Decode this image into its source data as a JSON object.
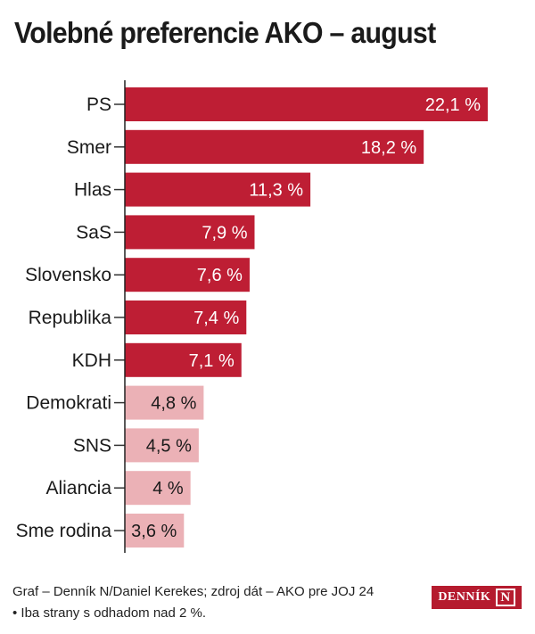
{
  "title": "Volebné preferencie AKO – august",
  "chart_data": {
    "type": "bar",
    "orientation": "horizontal",
    "title": "Volebné preferencie AKO – august",
    "categories": [
      "PS",
      "Smer",
      "Hlas",
      "SaS",
      "Slovensko",
      "Republika",
      "KDH",
      "Demokrati",
      "SNS",
      "Aliancia",
      "Sme rodina"
    ],
    "values": [
      22.1,
      18.2,
      11.3,
      7.9,
      7.6,
      7.4,
      7.1,
      4.8,
      4.5,
      4,
      3.6
    ],
    "value_labels": [
      "22,1 %",
      "18,2 %",
      "11,3 %",
      "7,9 %",
      "7,6 %",
      "7,4 %",
      "7,1 %",
      "4,8 %",
      "4,5 %",
      "4 %",
      "3,6 %"
    ],
    "unit": "%",
    "xlim": [
      0,
      22.1
    ],
    "grid": false,
    "colors": {
      "above_threshold": "#be1e34",
      "below_threshold": "#ebb1b6"
    },
    "threshold": 5
  },
  "footer": {
    "source": "Graf – Denník N/Daniel Kerekes; zdroj dát – AKO pre JOJ 24",
    "note": "• Iba strany s odhadom nad 2 %.",
    "logo_text": "DENNÍK N"
  }
}
